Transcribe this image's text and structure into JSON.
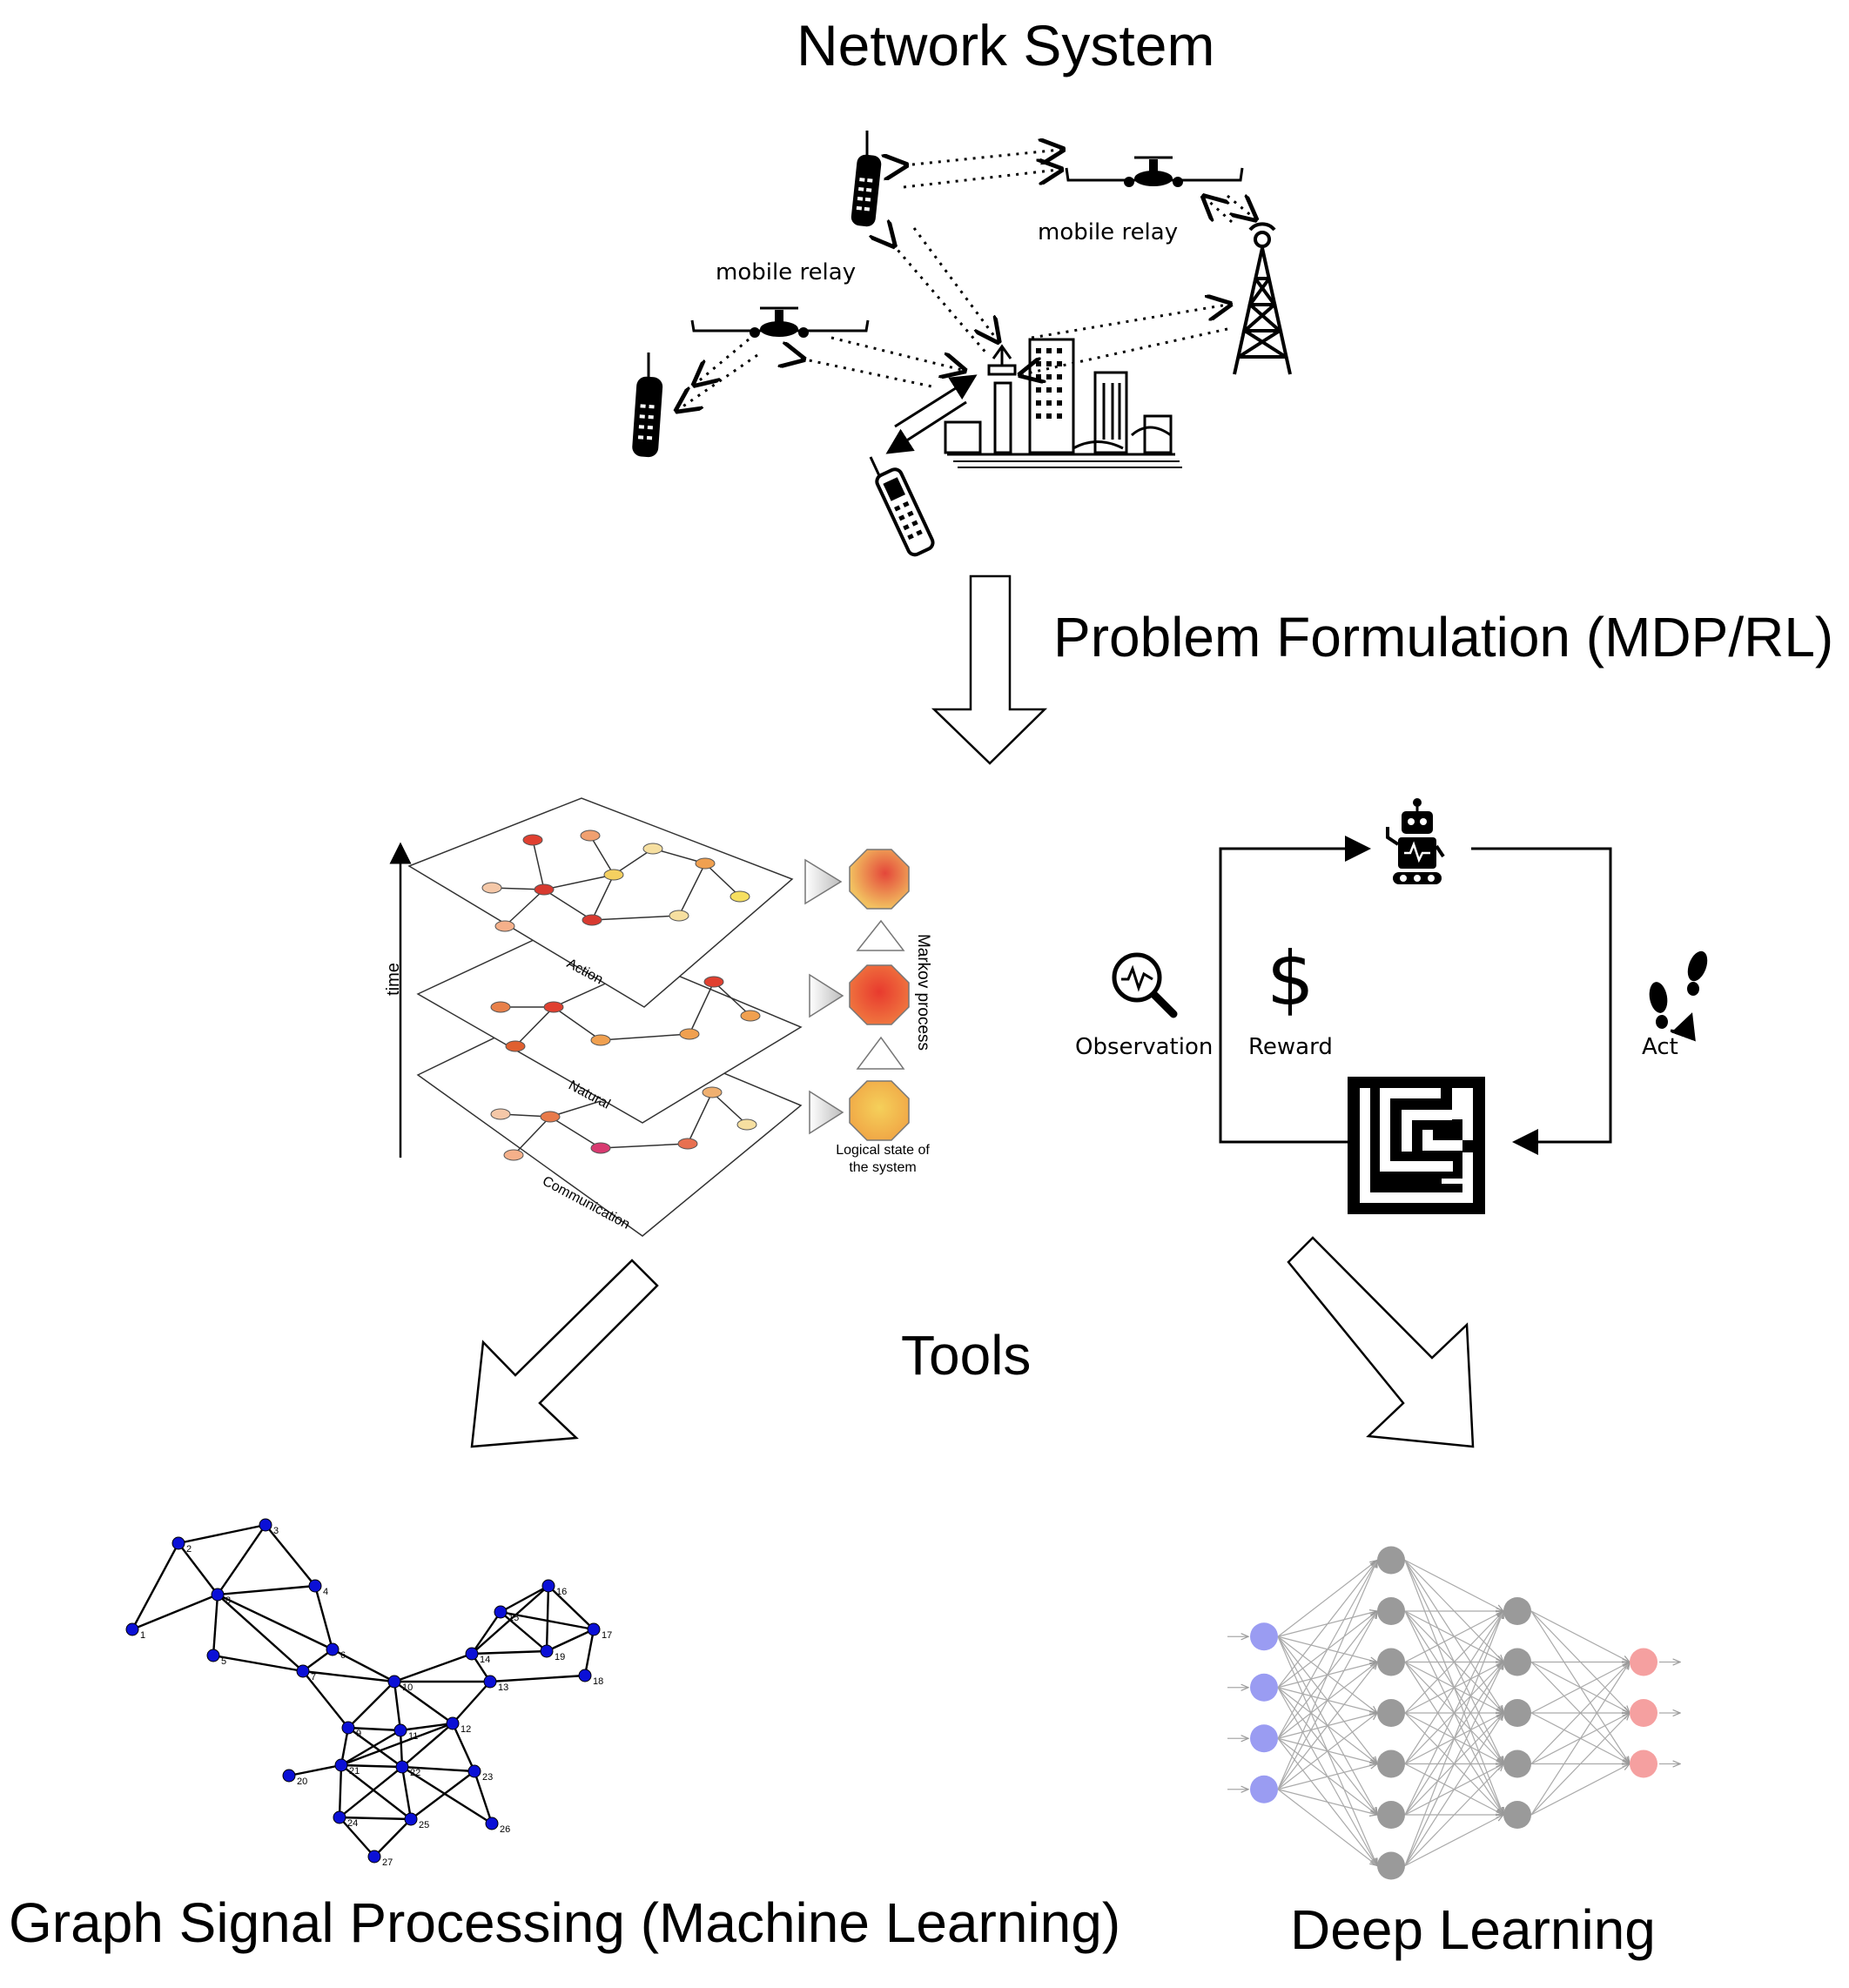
{
  "titles": {
    "network_system": "Network System",
    "problem_formulation": "Problem Formulation (MDP/RL)",
    "tools": "Tools",
    "gsp": "Graph Signal Processing (Machine Learning)",
    "deep_learning": "Deep Learning"
  },
  "network": {
    "relay_left_label": "mobile relay",
    "relay_right_label": "mobile relay"
  },
  "layers": {
    "time_label": "time",
    "layer_names": [
      "Action",
      "Natural",
      "Communication"
    ],
    "markov_label": "Markov process",
    "logical_state_label_line1": "Logical state of",
    "logical_state_label_line2": "the system"
  },
  "rl_loop": {
    "observation_label": "Observation",
    "reward_label": "Reward",
    "act_label": "Act",
    "reward_symbol": "$"
  },
  "graph": {
    "node_labels": [
      "1",
      "2",
      "3",
      "4",
      "5",
      "6",
      "7",
      "8",
      "9",
      "10",
      "11",
      "12",
      "13",
      "14",
      "15",
      "16",
      "17",
      "18",
      "19",
      "20",
      "21",
      "22",
      "23",
      "24",
      "25",
      "26",
      "27"
    ]
  },
  "neural_net": {
    "layers": [
      4,
      7,
      5,
      3
    ]
  },
  "colors": {
    "graph_node": "#0b10d6",
    "nn_input": "#9a9cf2",
    "nn_hidden": "#9a9a9a",
    "nn_output": "#f5a0a0",
    "octagon_top": "#f08a42",
    "octagon_mid": "#e0302a",
    "octagon_bottom": "#f0b84a"
  }
}
